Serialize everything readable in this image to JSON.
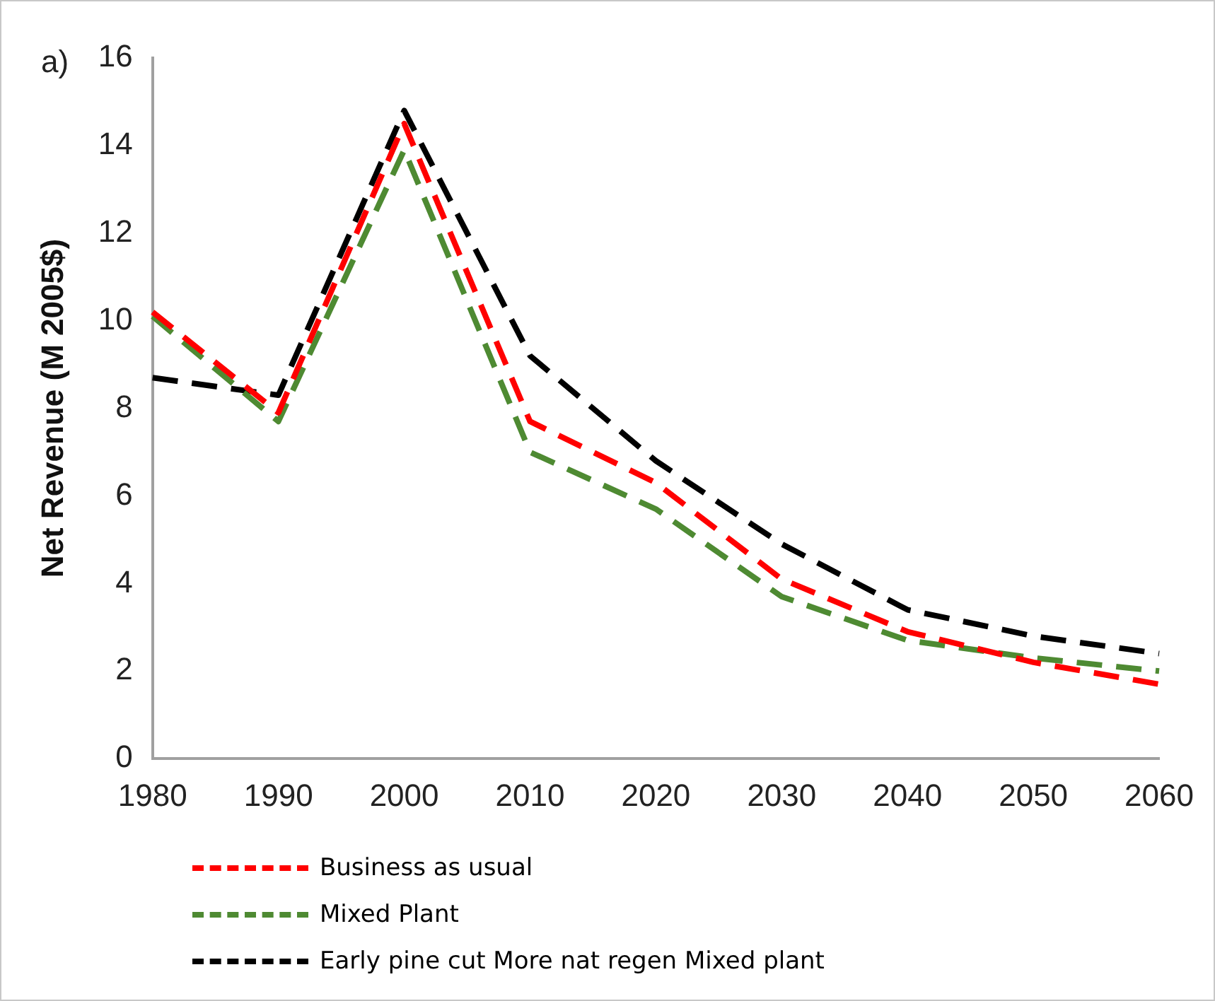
{
  "chart_data": {
    "type": "line",
    "ylabel": "Net Revenue (M 2005$)",
    "annotations": [
      "a)"
    ],
    "categories": [
      "1980",
      "1990",
      "2000",
      "2010",
      "2020",
      "2030",
      "2040",
      "2050",
      "2060"
    ],
    "series": [
      {
        "name": "Business as usual",
        "color": "#ff0000",
        "line_style": "dashed",
        "values": [
          10.2,
          7.9,
          14.5,
          7.7,
          6.3,
          4.1,
          2.9,
          2.2,
          1.7
        ]
      },
      {
        "name": "Mixed Plant",
        "color": "#4e8a32",
        "line_style": "dashed",
        "values": [
          10.1,
          7.7,
          13.9,
          7.0,
          5.7,
          3.7,
          2.7,
          2.3,
          2.0
        ]
      },
      {
        "name": "Early pine cut More nat regen Mixed plant",
        "color": "#000000",
        "line_style": "dashed",
        "values": [
          8.7,
          8.3,
          14.8,
          9.2,
          6.8,
          4.9,
          3.4,
          2.8,
          2.4
        ]
      }
    ],
    "ylim": [
      0,
      16
    ],
    "yticks": [
      0,
      2,
      4,
      6,
      8,
      10,
      12,
      14,
      16
    ],
    "grid": false,
    "legend": "bottom",
    "marker": "none"
  }
}
